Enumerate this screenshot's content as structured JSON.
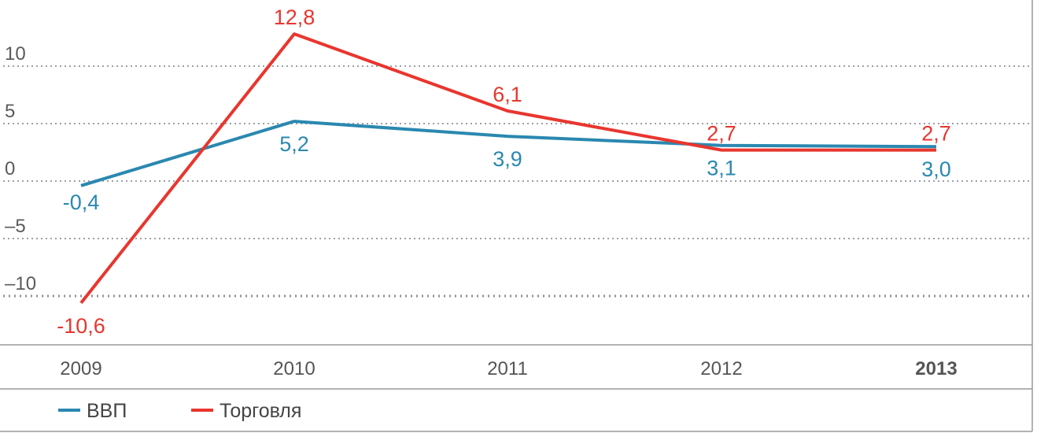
{
  "chart_data": {
    "type": "line",
    "categories": [
      "2009",
      "2010",
      "2011",
      "2012",
      "2013"
    ],
    "highlight_category": "2013",
    "ylim": [
      -13,
      15
    ],
    "yticks": [
      {
        "value": 10,
        "label": "10"
      },
      {
        "value": 5,
        "label": "5"
      },
      {
        "value": 0,
        "label": "0"
      },
      {
        "value": -5,
        "label": "–5"
      },
      {
        "value": -10,
        "label": "–10"
      }
    ],
    "grid": true,
    "legend_position": "bottom-left",
    "series": [
      {
        "name": "ВВП",
        "color": "#2a88b0",
        "values": [
          -0.4,
          5.2,
          3.9,
          3.1,
          3.0
        ],
        "labels": [
          "-0,4",
          "5,2",
          "3,9",
          "3,1",
          "3,0"
        ]
      },
      {
        "name": "Торговля",
        "color": "#e8362e",
        "values": [
          -10.6,
          12.8,
          6.1,
          2.7,
          2.7
        ],
        "labels": [
          "-10,6",
          "12,8",
          "6,1",
          "2,7",
          "2,7"
        ]
      }
    ]
  }
}
